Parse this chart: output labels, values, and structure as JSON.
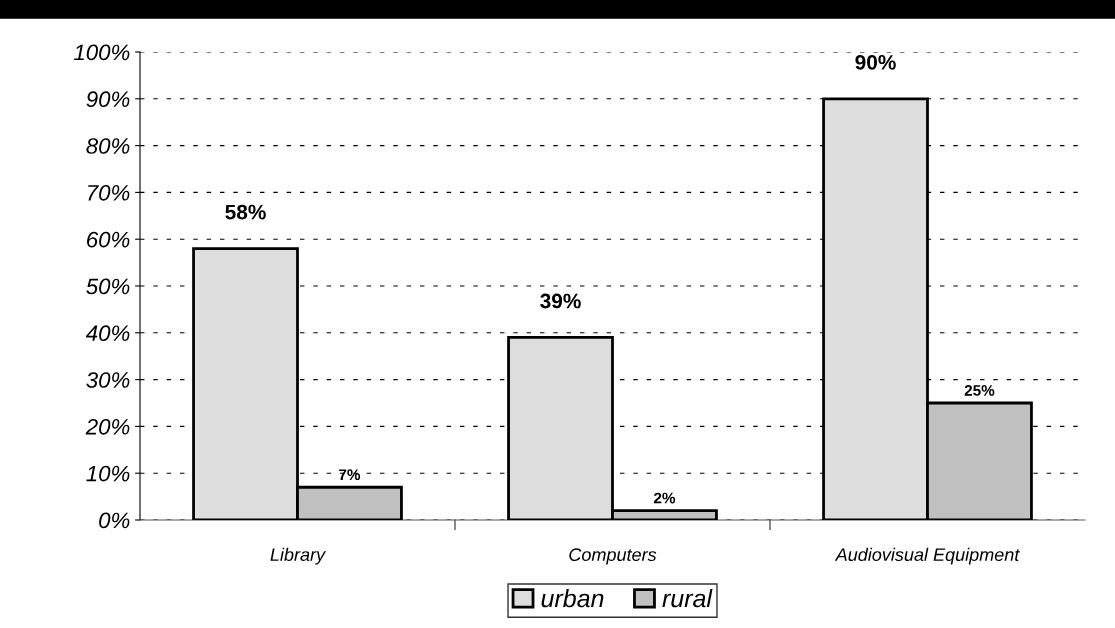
{
  "chart_data": {
    "type": "bar",
    "categories": [
      "Library",
      "Computers",
      "Audiovisual Equipment"
    ],
    "series": [
      {
        "name": "urban",
        "color": "#dddddd",
        "values": [
          58,
          39,
          90
        ],
        "value_labels": [
          "58%",
          "39%",
          "90%"
        ]
      },
      {
        "name": "rural",
        "color": "#c0c0c0",
        "values": [
          7,
          2,
          25
        ],
        "value_labels": [
          "7%",
          "2%",
          "25%"
        ]
      }
    ],
    "ylim": [
      0,
      100
    ],
    "yticks": [
      {
        "value": 0,
        "label": "0%"
      },
      {
        "value": 10,
        "label": "10%"
      },
      {
        "value": 20,
        "label": "20%"
      },
      {
        "value": 30,
        "label": "30%"
      },
      {
        "value": 40,
        "label": "40%"
      },
      {
        "value": 50,
        "label": "50%"
      },
      {
        "value": 60,
        "label": "60%"
      },
      {
        "value": 70,
        "label": "70%"
      },
      {
        "value": 80,
        "label": "80%"
      },
      {
        "value": 90,
        "label": "90%"
      },
      {
        "value": 100,
        "label": "100%"
      }
    ],
    "grid": "y",
    "legend": "bottom"
  }
}
